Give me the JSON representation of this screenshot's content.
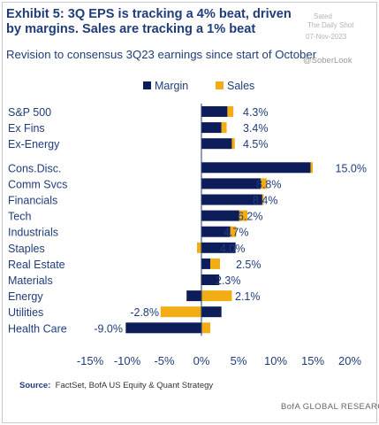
{
  "header": {
    "title": "Exhibit 5: 3Q EPS is tracking a 4% beat, driven by margins. Sales are tracking a 1% beat",
    "subtitle": "Revision to consensus 3Q23 earnings since start of October",
    "watermark_lines": [
      "Sated",
      "The Daily Shot",
      "07-Nov-2023"
    ],
    "handle": "@SoberLook"
  },
  "footer": {
    "source_label": "Source:",
    "source_text": "FactSet, BofA US Equity & Quant Strategy",
    "brand": "BofA GLOBAL RESEARCH"
  },
  "colors": {
    "margin": "#0c1d5a",
    "sales": "#f2ac14",
    "text": "#1f3d7a"
  },
  "chart_data": {
    "type": "bar",
    "orientation": "horizontal",
    "stacked": true,
    "legend": [
      "Margin",
      "Sales"
    ],
    "legend_position": "top",
    "xlim": [
      -15,
      20
    ],
    "xticks": [
      "-15%",
      "-10%",
      "-5%",
      "0%",
      "5%",
      "10%",
      "15%",
      "20%"
    ],
    "grid": false,
    "categories": [
      "S&P 500",
      "Ex Fins",
      "Ex-Energy",
      "Cons.Disc.",
      "Comm Svcs",
      "Financials",
      "Tech",
      "Industrials",
      "Staples",
      "Real Estate",
      "Materials",
      "Energy",
      "Utilities",
      "Health Care"
    ],
    "groups": [
      [
        0,
        1,
        2
      ],
      [
        3,
        4,
        5,
        6,
        7,
        8,
        9,
        10,
        11,
        12,
        13
      ]
    ],
    "series": [
      {
        "name": "Margin",
        "values": [
          3.5,
          2.7,
          4.1,
          14.7,
          8.0,
          8.2,
          5.1,
          3.9,
          4.6,
          1.2,
          2.4,
          -2.0,
          2.7,
          -10.2
        ]
      },
      {
        "name": "Sales",
        "values": [
          0.8,
          0.7,
          0.4,
          0.3,
          0.8,
          0.2,
          1.1,
          0.8,
          -0.6,
          1.3,
          -0.1,
          4.1,
          -5.5,
          1.2
        ]
      }
    ],
    "totals": [
      "4.3%",
      "3.4%",
      "4.5%",
      "15.0%",
      "8.8%",
      "8.4%",
      "6.2%",
      "4.7%",
      "4.0%",
      "2.5%",
      "2.3%",
      "2.1%",
      "-2.8%",
      "-9.0%"
    ]
  }
}
